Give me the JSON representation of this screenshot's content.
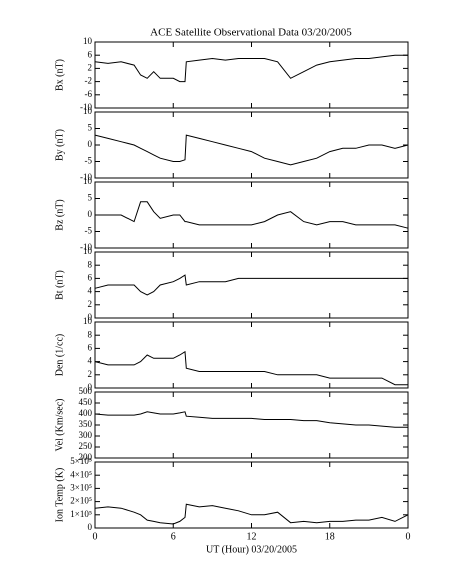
{
  "chart_data": [
    {
      "type": "line",
      "title": "ACE Satellite Observational Data   03/20/2005",
      "ylabel": "Bx (nT)",
      "x": [
        0,
        1,
        2,
        3,
        3.5,
        4,
        4.5,
        5,
        6,
        6.5,
        6.9,
        7,
        8,
        9,
        10,
        11,
        12,
        13,
        14,
        15,
        16,
        17,
        18,
        19,
        20,
        21,
        22,
        23,
        24
      ],
      "series": [
        {
          "name": "Bx",
          "color": "#000000",
          "values": [
            4,
            3.5,
            4,
            3,
            0,
            -1,
            1,
            -1,
            -1,
            -2,
            -2,
            4,
            4.5,
            5,
            4.5,
            5,
            5,
            5,
            4,
            -1,
            1,
            3,
            4,
            4.5,
            5,
            5,
            5.5,
            6,
            6
          ]
        }
      ],
      "xlim": [
        0,
        24
      ],
      "ylim": [
        -10,
        10
      ],
      "yticks": [
        -10,
        -6,
        -2,
        2,
        6,
        10
      ]
    },
    {
      "type": "line",
      "ylabel": "By (nT)",
      "x": [
        0,
        1,
        2,
        3,
        3.5,
        4,
        4.5,
        5,
        6,
        6.5,
        6.9,
        7,
        8,
        9,
        10,
        11,
        12,
        13,
        14,
        15,
        16,
        17,
        18,
        19,
        20,
        21,
        22,
        23,
        24
      ],
      "series": [
        {
          "name": "By",
          "color": "#000000",
          "values": [
            3,
            2,
            1,
            0,
            -1,
            -2,
            -3,
            -4,
            -5,
            -5,
            -4.5,
            3,
            2,
            1,
            0,
            -1,
            -2,
            -4,
            -5,
            -6,
            -5,
            -4,
            -2,
            -1,
            -1,
            0,
            0,
            -1,
            0
          ]
        }
      ],
      "xlim": [
        0,
        24
      ],
      "ylim": [
        -10,
        10
      ],
      "yticks": [
        -10,
        -5,
        0,
        5,
        10
      ]
    },
    {
      "type": "line",
      "ylabel": "Bz (nT)",
      "x": [
        0,
        1,
        2,
        3,
        3.5,
        4,
        4.5,
        5,
        6,
        6.5,
        6.9,
        7,
        8,
        9,
        10,
        11,
        12,
        13,
        14,
        15,
        16,
        17,
        18,
        19,
        20,
        21,
        22,
        23,
        24
      ],
      "series": [
        {
          "name": "Bz",
          "color": "#000000",
          "values": [
            0,
            0,
            0,
            -2,
            4,
            4,
            1,
            -1,
            0,
            0,
            -2,
            -2,
            -3,
            -3,
            -3,
            -3,
            -3,
            -2,
            0,
            1,
            -2,
            -3,
            -2,
            -2,
            -3,
            -3,
            -3,
            -3,
            -4
          ]
        }
      ],
      "xlim": [
        0,
        24
      ],
      "ylim": [
        -10,
        10
      ],
      "yticks": [
        -10,
        -5,
        0,
        5,
        10
      ]
    },
    {
      "type": "line",
      "ylabel": "Bt (nT)",
      "x": [
        0,
        1,
        2,
        3,
        3.5,
        4,
        4.5,
        5,
        6,
        6.5,
        6.9,
        7,
        8,
        9,
        10,
        11,
        12,
        13,
        14,
        15,
        16,
        17,
        18,
        19,
        20,
        21,
        22,
        23,
        24
      ],
      "series": [
        {
          "name": "Bt",
          "color": "#000000",
          "values": [
            4.5,
            5,
            5,
            5,
            4,
            3.5,
            4,
            5,
            5.5,
            6,
            6.5,
            5,
            5.5,
            5.5,
            5.5,
            6,
            6,
            6,
            6,
            6,
            6,
            6,
            6,
            6,
            6,
            6,
            6,
            6,
            6
          ]
        }
      ],
      "xlim": [
        0,
        24
      ],
      "ylim": [
        0,
        10
      ],
      "yticks": [
        0,
        2,
        4,
        6,
        8,
        10
      ]
    },
    {
      "type": "line",
      "ylabel": "Den (1/cc)",
      "x": [
        0,
        1,
        2,
        3,
        3.5,
        4,
        4.5,
        5,
        6,
        6.5,
        6.9,
        7,
        8,
        9,
        10,
        11,
        12,
        13,
        14,
        15,
        16,
        17,
        18,
        19,
        20,
        21,
        22,
        23,
        24
      ],
      "series": [
        {
          "name": "Den",
          "color": "#000000",
          "values": [
            4,
            3.5,
            3.5,
            3.5,
            4,
            5,
            4.5,
            4.5,
            4.5,
            5,
            5.5,
            3,
            2.5,
            2.5,
            2.5,
            2.5,
            2.5,
            2.5,
            2,
            2,
            2,
            2,
            1.5,
            1.5,
            1.5,
            1.5,
            1.5,
            0.5,
            0.5
          ]
        }
      ],
      "xlim": [
        0,
        24
      ],
      "ylim": [
        0,
        10
      ],
      "yticks": [
        0,
        2,
        4,
        6,
        8,
        10
      ]
    },
    {
      "type": "line",
      "ylabel": "Vel (Km/sec)",
      "x": [
        0,
        1,
        2,
        3,
        3.5,
        4,
        4.5,
        5,
        6,
        6.5,
        6.9,
        7,
        8,
        9,
        10,
        11,
        12,
        13,
        14,
        15,
        16,
        17,
        18,
        19,
        20,
        21,
        22,
        23,
        24
      ],
      "series": [
        {
          "name": "Vel",
          "color": "#000000",
          "values": [
            400,
            395,
            395,
            395,
            400,
            410,
            405,
            400,
            400,
            405,
            410,
            390,
            385,
            380,
            380,
            380,
            380,
            375,
            375,
            375,
            370,
            370,
            360,
            355,
            350,
            350,
            345,
            340,
            340
          ]
        }
      ],
      "xlim": [
        0,
        24
      ],
      "ylim": [
        200,
        500
      ],
      "yticks": [
        200,
        250,
        300,
        350,
        400,
        450,
        500
      ]
    },
    {
      "type": "line",
      "ylabel": "Ion Temp (K)",
      "xlabel": "UT (Hour)  03/20/2005",
      "x": [
        0,
        1,
        2,
        3,
        3.5,
        4,
        4.5,
        5,
        6,
        6.5,
        6.9,
        7,
        8,
        9,
        10,
        11,
        12,
        13,
        14,
        15,
        16,
        17,
        18,
        19,
        20,
        21,
        22,
        23,
        24
      ],
      "series": [
        {
          "name": "Ion Temp",
          "color": "#000000",
          "values": [
            150000,
            160000,
            150000,
            120000,
            100000,
            60000,
            50000,
            40000,
            30000,
            50000,
            80000,
            180000,
            160000,
            170000,
            150000,
            130000,
            100000,
            100000,
            120000,
            40000,
            50000,
            40000,
            50000,
            50000,
            60000,
            60000,
            80000,
            50000,
            100000
          ]
        }
      ],
      "xlim": [
        0,
        24
      ],
      "ylim": [
        0,
        500000
      ],
      "yticks": [
        0,
        {
          "value": 100000,
          "label": "1×10⁵"
        },
        {
          "value": 200000,
          "label": "2×10⁵"
        },
        {
          "value": 300000,
          "label": "3×10⁵"
        },
        {
          "value": 400000,
          "label": "4×10⁵"
        },
        {
          "value": 500000,
          "label": "5×10⁵"
        }
      ],
      "xticks": [
        0,
        6,
        12,
        18,
        {
          "value": 24,
          "label": "0"
        }
      ]
    }
  ]
}
